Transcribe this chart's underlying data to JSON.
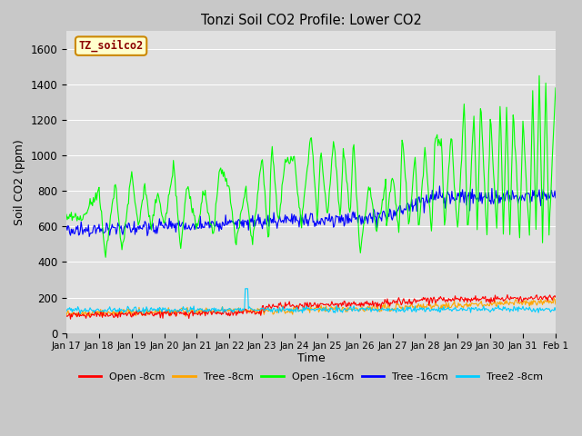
{
  "title": "Tonzi Soil CO2 Profile: Lower CO2",
  "xlabel": "Time",
  "ylabel": "Soil CO2 (ppm)",
  "ylim": [
    0,
    1700
  ],
  "yticks": [
    0,
    200,
    400,
    600,
    800,
    1000,
    1200,
    1400,
    1600
  ],
  "fig_bg": "#c8c8c8",
  "plot_bg": "#e0e0e0",
  "legend_label": "TZ_soilco2",
  "series": {
    "open_8cm": {
      "color": "#ff0000",
      "label": "Open -8cm"
    },
    "tree_8cm": {
      "color": "#ffa500",
      "label": "Tree -8cm"
    },
    "open_16cm": {
      "color": "#00ff00",
      "label": "Open -16cm"
    },
    "tree_16cm": {
      "color": "#0000ff",
      "label": "Tree -16cm"
    },
    "tree2_8cm": {
      "color": "#00ccff",
      "label": "Tree2 -8cm"
    }
  },
  "x_tick_labels": [
    "Jan 17",
    "Jan 18",
    "Jan 19",
    "Jan 20",
    "Jan 21",
    "Jan 22",
    "Jan 23",
    "Jan 24",
    "Jan 25",
    "Jan 26",
    "Jan 27",
    "Jan 28",
    "Jan 29",
    "Jan 30",
    "Jan 31",
    "Feb 1"
  ],
  "n_points": 600
}
